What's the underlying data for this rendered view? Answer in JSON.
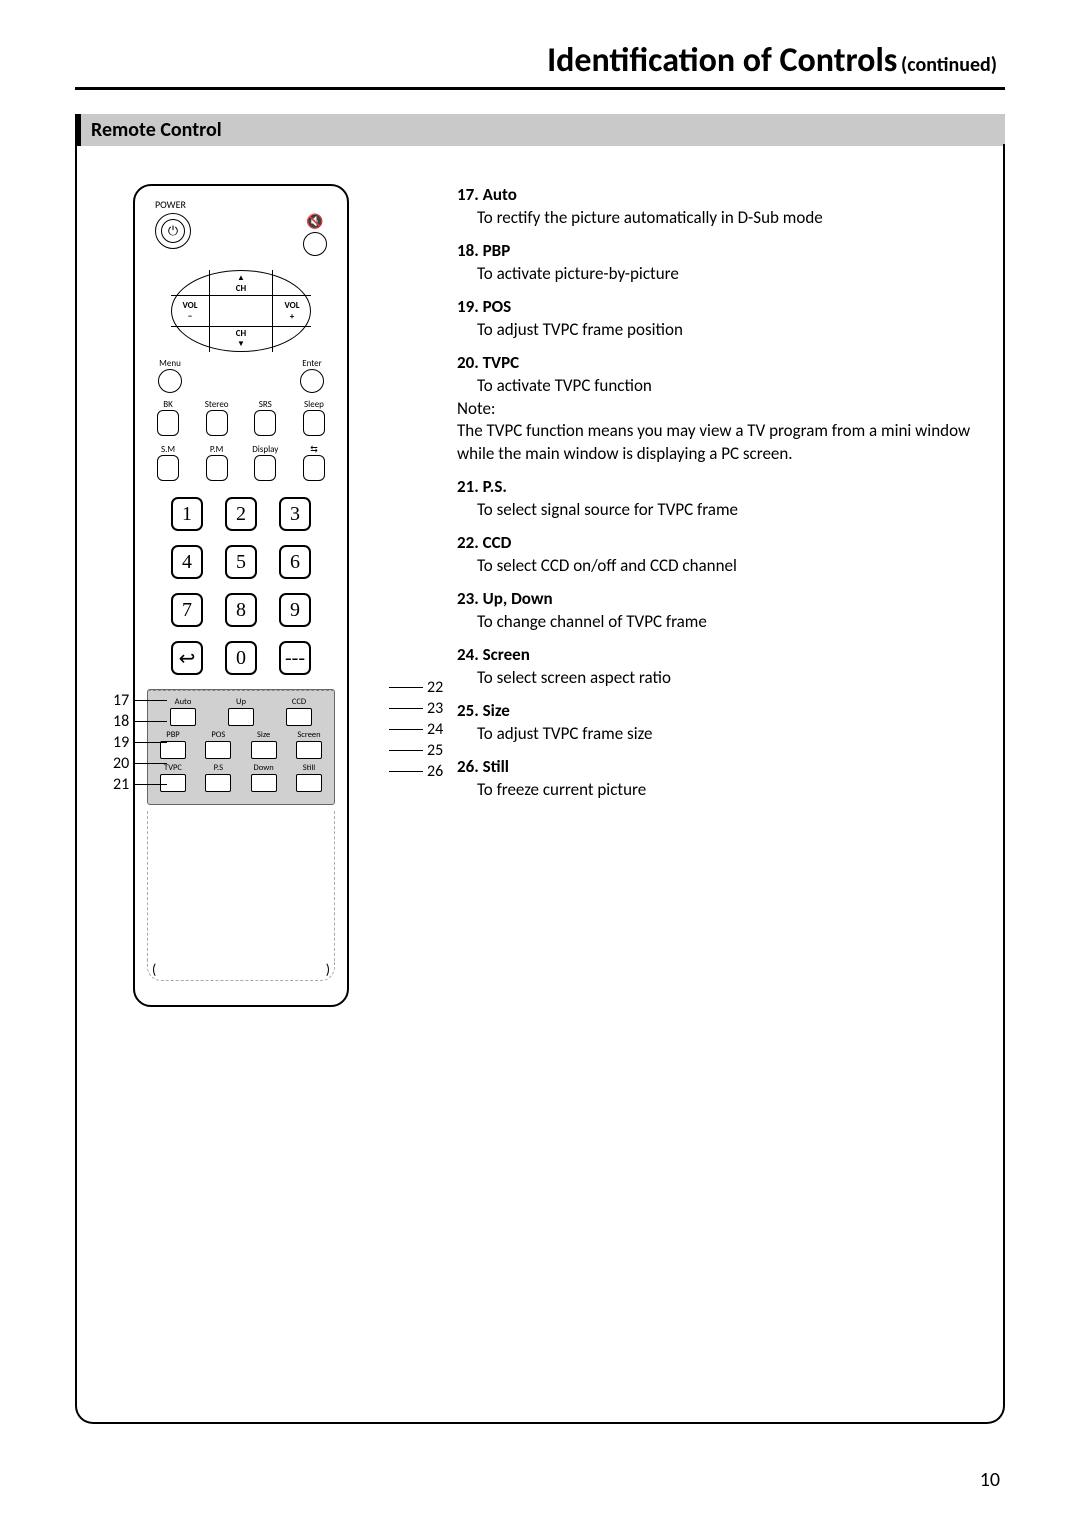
{
  "page_number": "10",
  "title": {
    "main": "Identification of Controls",
    "suffix": "(continued)"
  },
  "section_header": "Remote Control",
  "remote": {
    "power_label": "POWER",
    "dpad": {
      "ch": "CH",
      "vol": "VOL",
      "minus": "−",
      "plus": "+"
    },
    "menu_label": "Menu",
    "enter_label": "Enter",
    "row_a": [
      "BK",
      "Stereo",
      "SRS",
      "Sleep"
    ],
    "row_b": [
      "S.M",
      "P.M",
      "Display",
      ""
    ],
    "numpad": [
      "1",
      "2",
      "3",
      "4",
      "5",
      "6",
      "7",
      "8",
      "9",
      "↩",
      "0",
      "---"
    ],
    "flap": {
      "r1": [
        "Auto",
        "Up",
        "CCD"
      ],
      "r2": [
        "PBP",
        "POS",
        "Size",
        "Screen"
      ],
      "r3": [
        "TVPC",
        "P.S",
        "Down",
        "Still"
      ]
    }
  },
  "callouts": {
    "left": [
      "17",
      "18",
      "19",
      "20",
      "21"
    ],
    "right": [
      "22",
      "23",
      "24",
      "25",
      "26"
    ]
  },
  "descriptions": [
    {
      "n": "17",
      "t": "Auto",
      "d": "To rectify the picture automatically in D-Sub mode"
    },
    {
      "n": "18",
      "t": "PBP",
      "d": "To activate picture-by-picture"
    },
    {
      "n": "19",
      "t": "POS",
      "d": "To adjust TVPC frame position"
    },
    {
      "n": "20",
      "t": "TVPC",
      "d": "To activate TVPC function",
      "note": "Note:\nThe TVPC function means you may view a TV program from a mini window while the main window is displaying a PC screen."
    },
    {
      "n": "21",
      "t": "P.S.",
      "d": "To select signal source for TVPC frame"
    },
    {
      "n": "22",
      "t": "CCD",
      "d": "To select CCD on/off and CCD channel"
    },
    {
      "n": "23",
      "t": "Up, Down",
      "d": "To change channel of TVPC frame"
    },
    {
      "n": "24",
      "t": "Screen",
      "d": "To select screen aspect ratio"
    },
    {
      "n": "25",
      "t": "Size",
      "d": "To adjust TVPC frame size"
    },
    {
      "n": "26",
      "t": "Still",
      "d": "To freeze current picture"
    }
  ]
}
